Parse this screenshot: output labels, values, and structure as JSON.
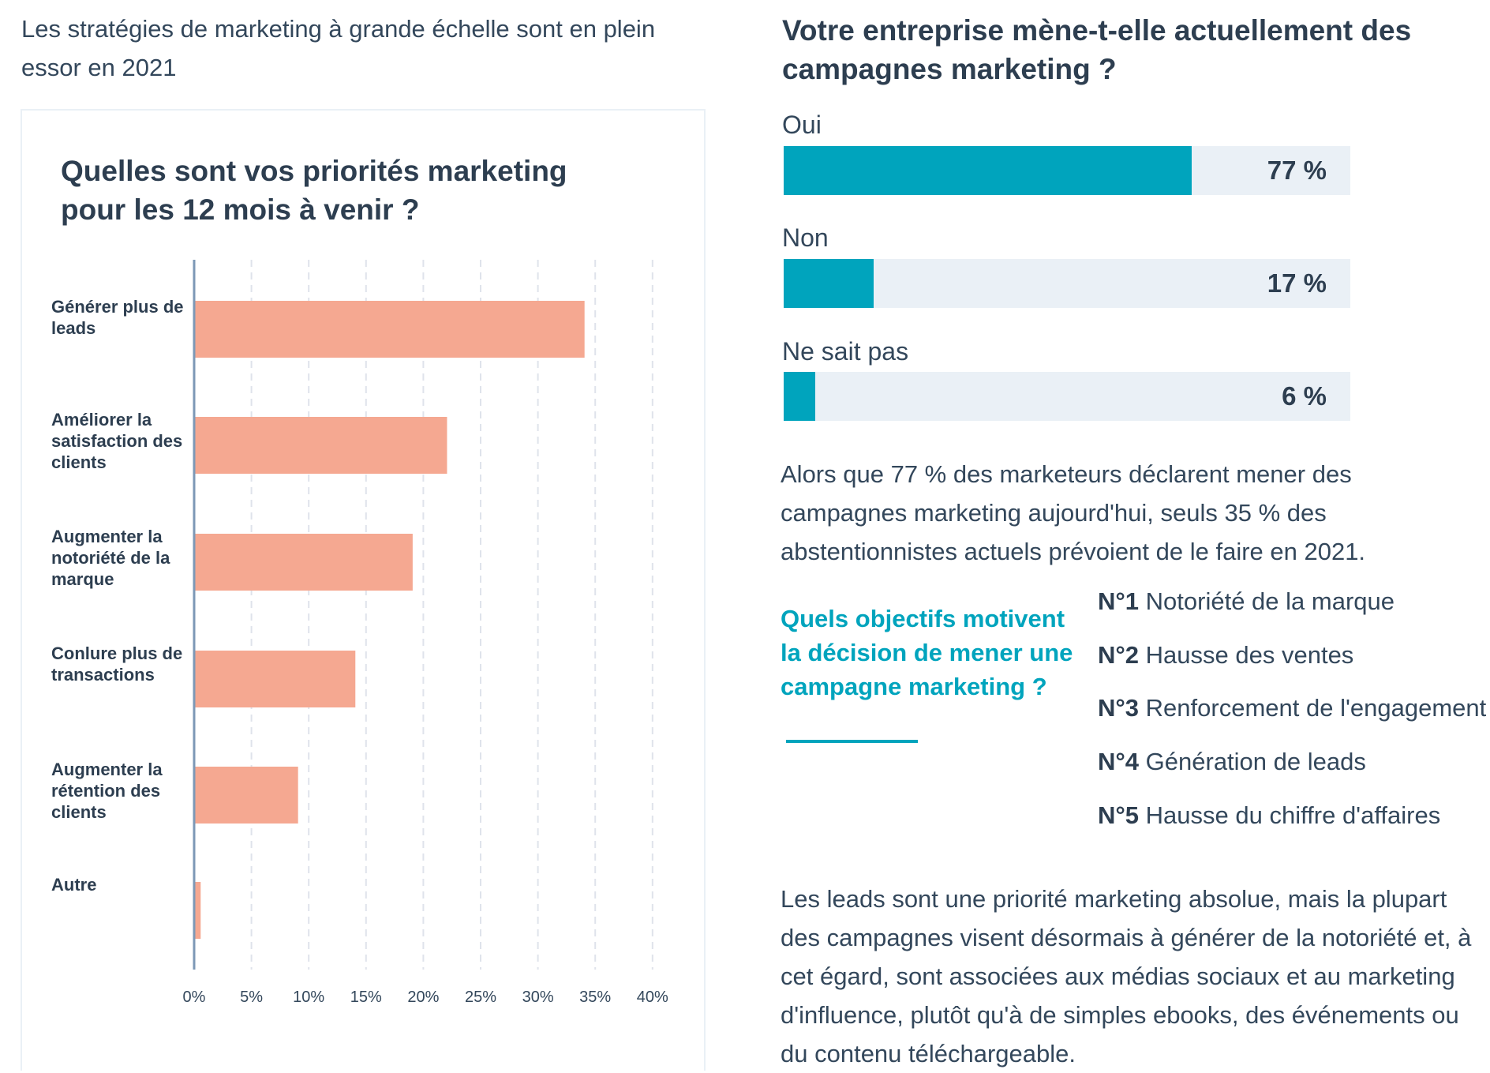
{
  "intro": "Les stratégies de marketing à grande échelle sont en plein essor en 2021",
  "chart_data": {
    "type": "bar",
    "orientation": "horizontal",
    "title": "Quelles sont vos priorités marketing pour les 12 mois à venir ?",
    "categories": [
      "Générer plus de leads",
      "Améliorer la satisfaction des clients",
      "Augmenter la notoriété de la marque",
      "Conlure plus de transactions",
      "Augmenter la rétention des clients",
      "Autre"
    ],
    "values": [
      34,
      22,
      19,
      14,
      9,
      0.5
    ],
    "xlim": [
      0,
      40
    ],
    "x_ticks": [
      "0%",
      "5%",
      "10%",
      "15%",
      "20%",
      "25%",
      "30%",
      "35%",
      "40%"
    ],
    "grid": true,
    "color": "#f5a891"
  },
  "survey": {
    "title": "Votre entreprise mène-t-elle actuellement des campagnes marketing ?",
    "accent": "#00a4bd",
    "options": [
      {
        "label": "Oui",
        "value": 77,
        "display": "77 %"
      },
      {
        "label": "Non",
        "value": 17,
        "display": "17 %"
      },
      {
        "label": "Ne sait pas",
        "value": 6,
        "display": "6 %"
      }
    ],
    "paragraph": "Alors que 77 % des marketeurs déclarent mener des campagnes marketing aujourd'hui, seuls 35 % des abstentionnistes actuels prévoient de le faire en 2021."
  },
  "objectives": {
    "question": "Quels objectifs motivent la décision de mener une campagne marketing ?",
    "items": [
      {
        "rank": "N°1",
        "label": "Notoriété de la marque"
      },
      {
        "rank": "N°2",
        "label": "Hausse des ventes"
      },
      {
        "rank": "N°3",
        "label": "Renforcement de l'engagement"
      },
      {
        "rank": "N°4",
        "label": "Génération de leads"
      },
      {
        "rank": "N°5",
        "label": "Hausse du chiffre d'affaires"
      }
    ]
  },
  "conclusion": "Les leads sont une priorité marketing absolue, mais la plupart des campagnes visent désormais à générer de la notoriété et, à cet égard, sont associées aux médias sociaux et au marketing d'influence, plutôt qu'à de simples ebooks, des événements ou du contenu téléchargeable."
}
